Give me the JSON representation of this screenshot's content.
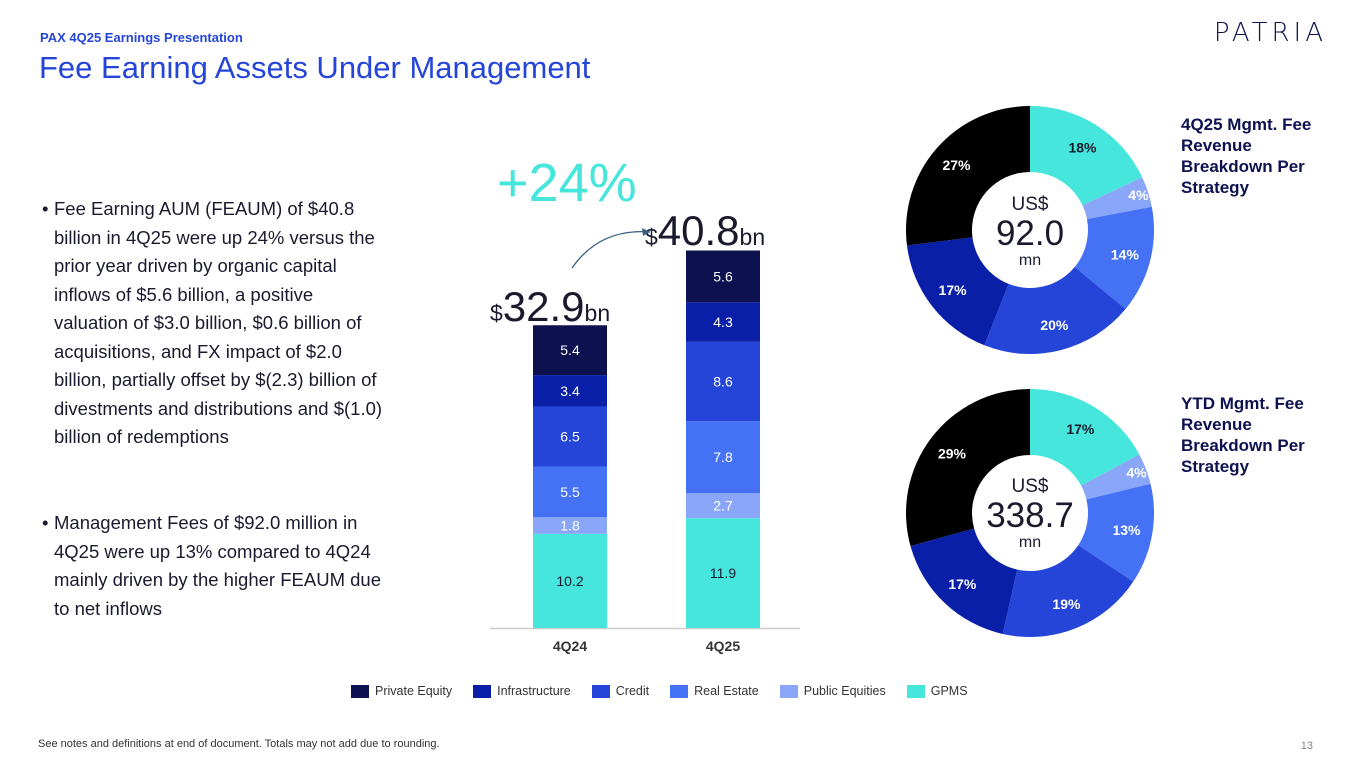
{
  "header": {
    "subtitle": "PAX 4Q25 Earnings Presentation",
    "title": "Fee Earning Assets Under Management",
    "logo": "PATRIA"
  },
  "bullets": [
    "Fee Earning AUM (FEAUM) of $40.8 billion in 4Q25 were up 24% versus the prior year driven by organic capital inflows of $5.6 billion, a positive valuation of $3.0 billion, $0.6 billion of acquisitions, and FX impact of $2.0 billion, partially offset by $(2.3) billion of divestments and distributions and $(1.0) billion of redemptions",
    "Management Fees of $92.0 million in 4Q25 were up 13% compared to 4Q24 mainly driven by the higher FEAUM due to net inflows"
  ],
  "bullet_symbol": "•",
  "annotations": {
    "growth": "+24%",
    "total_4q24": {
      "prefix": "$",
      "value": "32.9",
      "suffix": "bn"
    },
    "total_4q25": {
      "prefix": "$",
      "value": "40.8",
      "suffix": "bn"
    }
  },
  "footer": {
    "note": "See notes and definitions at end of document. Totals may not add due to rounding.",
    "page": "13"
  },
  "chart_data": [
    {
      "type": "bar",
      "stacked": true,
      "categories": [
        "4Q24",
        "4Q25"
      ],
      "series": [
        {
          "name": "GPMS",
          "values": [
            10.2,
            11.9
          ],
          "color": "#47e6dc"
        },
        {
          "name": "Public Equities",
          "values": [
            1.8,
            2.7
          ],
          "color": "#8aa6f8"
        },
        {
          "name": "Real Estate",
          "values": [
            5.5,
            7.8
          ],
          "color": "#4571f5"
        },
        {
          "name": "Credit",
          "values": [
            6.5,
            8.6
          ],
          "color": "#2545d8"
        },
        {
          "name": "Infrastructure",
          "values": [
            3.4,
            4.3
          ],
          "color": "#0a1fa8"
        },
        {
          "name": "Private Equity",
          "values": [
            5.4,
            5.6
          ],
          "color": "#0d1150"
        }
      ],
      "legend_order": [
        "Private Equity",
        "Infrastructure",
        "Credit",
        "Real Estate",
        "Public Equities",
        "GPMS"
      ],
      "legend_position": "bottom",
      "grid": false,
      "ylim": [
        0,
        42
      ]
    },
    {
      "type": "pie",
      "donut": true,
      "title": "4Q25 Mgmt. Fee Revenue Breakdown Per Strategy",
      "center": {
        "top": "US$",
        "value": "92.0",
        "bottom": "mn"
      },
      "slices": [
        {
          "name": "GPMS",
          "value": 18,
          "label": "18%",
          "color": "#47e6dc"
        },
        {
          "name": "Public Equities",
          "value": 4,
          "label": "4%",
          "color": "#8aa6f8"
        },
        {
          "name": "Real Estate",
          "value": 14,
          "label": "14%",
          "color": "#4571f5"
        },
        {
          "name": "Credit",
          "value": 20,
          "label": "20%",
          "color": "#2545d8"
        },
        {
          "name": "Infrastructure",
          "value": 17,
          "label": "17%",
          "color": "#0a1fa8"
        },
        {
          "name": "Private Equity",
          "value": 27,
          "label": "27%",
          "color": "#000000"
        }
      ]
    },
    {
      "type": "pie",
      "donut": true,
      "title": "YTD Mgmt. Fee Revenue Breakdown Per Strategy",
      "center": {
        "top": "US$",
        "value": "338.7",
        "bottom": "mn"
      },
      "slices": [
        {
          "name": "GPMS",
          "value": 17,
          "label": "17%",
          "color": "#47e6dc"
        },
        {
          "name": "Public Equities",
          "value": 4,
          "label": "4%",
          "color": "#8aa6f8"
        },
        {
          "name": "Real Estate",
          "value": 13,
          "label": "13%",
          "color": "#4571f5"
        },
        {
          "name": "Credit",
          "value": 19,
          "label": "19%",
          "color": "#2545d8"
        },
        {
          "name": "Infrastructure",
          "value": 17,
          "label": "17%",
          "color": "#0a1fa8"
        },
        {
          "name": "Private Equity",
          "value": 29,
          "label": "29%",
          "color": "#000000"
        }
      ]
    }
  ]
}
